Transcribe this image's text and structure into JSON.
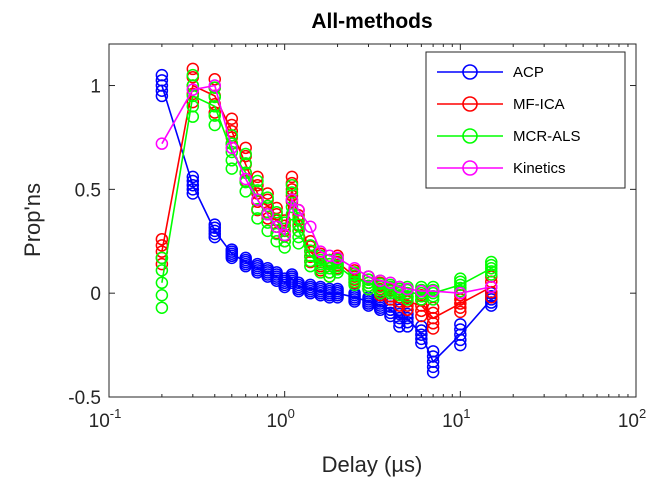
{
  "chart_data": {
    "type": "scatter",
    "title": "All-methods",
    "xlabel": "Delay (µs)",
    "ylabel": "Prop'ns",
    "xscale": "log",
    "xlim": [
      0.1,
      100
    ],
    "ylim": [
      -0.5,
      1.2
    ],
    "x_ticks": [
      {
        "value": 0.1,
        "base": "10",
        "exp": "-1"
      },
      {
        "value": 1,
        "base": "10",
        "exp": "0"
      },
      {
        "value": 10,
        "base": "10",
        "exp": "1"
      },
      {
        "value": 100,
        "base": "10",
        "exp": "2"
      }
    ],
    "y_ticks": [
      {
        "value": -0.5,
        "label": "-0.5"
      },
      {
        "value": 0,
        "label": "0"
      },
      {
        "value": 0.5,
        "label": "0.5"
      },
      {
        "value": 1,
        "label": "1"
      }
    ],
    "grid": false,
    "legend_position": "top-right",
    "x": [
      0.2,
      0.3,
      0.4,
      0.5,
      0.6,
      0.7,
      0.8,
      0.9,
      1.0,
      1.1,
      1.2,
      1.4,
      1.6,
      1.8,
      2.0,
      2.5,
      3.0,
      3.5,
      4.0,
      4.5,
      5.0,
      6.0,
      7.0,
      10.0,
      15.0
    ],
    "series": [
      {
        "name": "ACP",
        "color": "#0000ff",
        "values": [
          1.0,
          0.52,
          0.3,
          0.19,
          0.15,
          0.12,
          0.1,
          0.08,
          0.05,
          0.07,
          0.03,
          0.02,
          0.01,
          0.0,
          0.0,
          -0.02,
          -0.04,
          -0.06,
          -0.08,
          -0.12,
          -0.12,
          -0.2,
          -0.33,
          -0.2,
          -0.03
        ],
        "spread": [
          0.05,
          0.04,
          0.03,
          0.02,
          0.02,
          0.02,
          0.02,
          0.02,
          0.02,
          0.02,
          0.02,
          0.02,
          0.02,
          0.02,
          0.02,
          0.02,
          0.02,
          0.02,
          0.03,
          0.04,
          0.04,
          0.04,
          0.05,
          0.05,
          0.03
        ]
      },
      {
        "name": "MF-ICA",
        "color": "#ff0000",
        "values": [
          0.2,
          1.0,
          0.95,
          0.78,
          0.62,
          0.48,
          0.42,
          0.35,
          0.3,
          0.5,
          0.35,
          0.2,
          0.15,
          0.12,
          0.15,
          0.08,
          0.05,
          0.02,
          0.0,
          -0.02,
          -0.04,
          -0.06,
          -0.12,
          -0.05,
          0.03
        ],
        "spread": [
          0.06,
          0.08,
          0.08,
          0.06,
          0.08,
          0.08,
          0.06,
          0.06,
          0.05,
          0.06,
          0.05,
          0.05,
          0.04,
          0.04,
          0.03,
          0.03,
          0.03,
          0.03,
          0.03,
          0.04,
          0.04,
          0.05,
          0.05,
          0.04,
          0.05
        ]
      },
      {
        "name": "MCR-ALS",
        "color": "#00ff00",
        "values": [
          0.05,
          0.95,
          0.9,
          0.68,
          0.58,
          0.45,
          0.38,
          0.32,
          0.28,
          0.45,
          0.3,
          0.18,
          0.14,
          0.12,
          0.13,
          0.07,
          0.05,
          0.03,
          0.02,
          0.01,
          0.0,
          0.0,
          0.0,
          0.04,
          0.12
        ],
        "spread": [
          0.12,
          0.1,
          0.09,
          0.08,
          0.09,
          0.09,
          0.08,
          0.07,
          0.06,
          0.07,
          0.06,
          0.05,
          0.04,
          0.04,
          0.03,
          0.03,
          0.03,
          0.03,
          0.02,
          0.02,
          0.03,
          0.03,
          0.03,
          0.03,
          0.03
        ]
      },
      {
        "name": "Kinetics",
        "color": "#ff00ff",
        "values": [
          0.72,
          0.98,
          1.0,
          0.7,
          0.55,
          0.45,
          0.38,
          0.32,
          0.28,
          0.45,
          0.4,
          0.32,
          0.2,
          0.18,
          0.17,
          0.12,
          0.08,
          0.06,
          0.05,
          0.03,
          0.02,
          0.01,
          0.01,
          0.0,
          0.03
        ],
        "spread": [
          0,
          0,
          0,
          0,
          0,
          0,
          0,
          0,
          0,
          0,
          0,
          0,
          0,
          0,
          0,
          0,
          0,
          0,
          0,
          0,
          0,
          0,
          0,
          0,
          0
        ]
      }
    ]
  }
}
